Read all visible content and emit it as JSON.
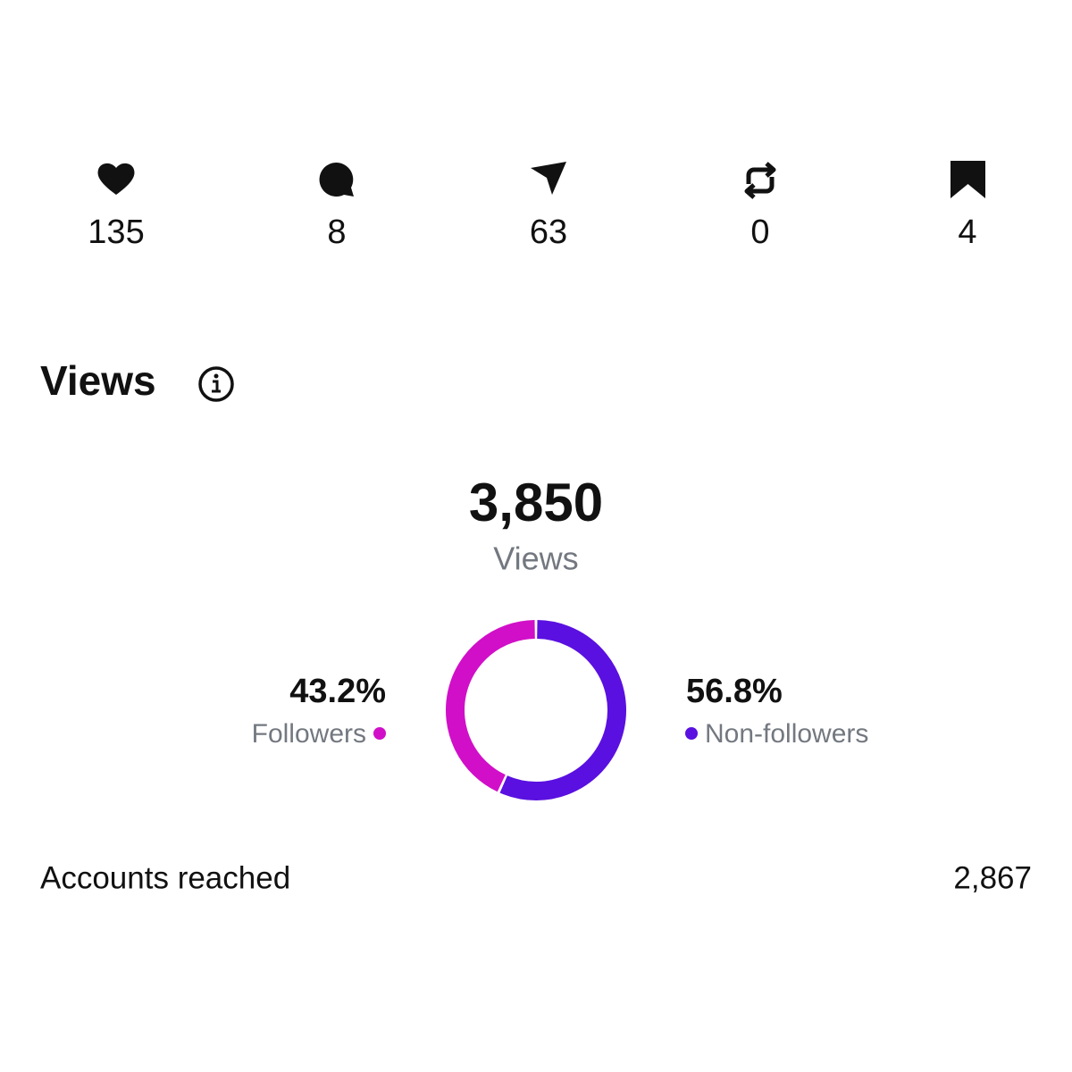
{
  "stats": [
    135,
    8,
    63,
    0,
    4
  ],
  "views": {
    "title": "Views",
    "total": "3,850",
    "total_label": "Views"
  },
  "chart_data": {
    "type": "donut",
    "categories": [
      "Followers",
      "Non-followers"
    ],
    "values": [
      43.2,
      56.8
    ],
    "value_labels": [
      "43.2%",
      "56.8%"
    ],
    "colors": [
      "#d10fc8",
      "#5a10e0"
    ]
  },
  "accounts_reached": {
    "label": "Accounts reached",
    "value": "2,867"
  }
}
